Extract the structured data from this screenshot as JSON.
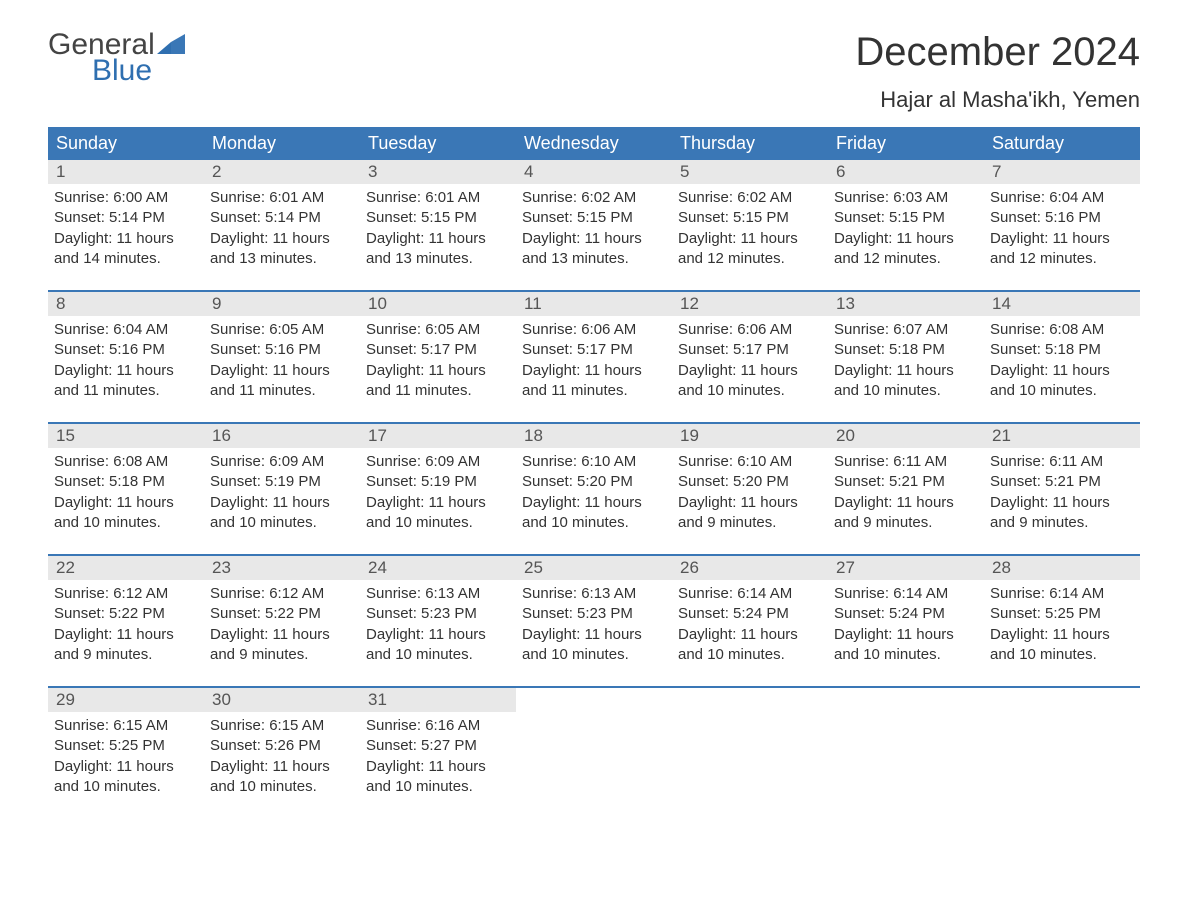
{
  "logo": {
    "word1": "General",
    "word2": "Blue"
  },
  "title": "December 2024",
  "location": "Hajar al Masha'ikh, Yemen",
  "colors": {
    "header_bg": "#3a77b6",
    "daynum_bg": "#e8e8e8",
    "week_divider": "#3a77b6",
    "logo_gray": "#444444",
    "logo_blue": "#2f6fb0",
    "text": "#333333",
    "background": "#ffffff"
  },
  "day_headers": [
    "Sunday",
    "Monday",
    "Tuesday",
    "Wednesday",
    "Thursday",
    "Friday",
    "Saturday"
  ],
  "weeks": [
    [
      {
        "n": "1",
        "sunrise": "Sunrise: 6:00 AM",
        "sunset": "Sunset: 5:14 PM",
        "d1": "Daylight: 11 hours",
        "d2": "and 14 minutes."
      },
      {
        "n": "2",
        "sunrise": "Sunrise: 6:01 AM",
        "sunset": "Sunset: 5:14 PM",
        "d1": "Daylight: 11 hours",
        "d2": "and 13 minutes."
      },
      {
        "n": "3",
        "sunrise": "Sunrise: 6:01 AM",
        "sunset": "Sunset: 5:15 PM",
        "d1": "Daylight: 11 hours",
        "d2": "and 13 minutes."
      },
      {
        "n": "4",
        "sunrise": "Sunrise: 6:02 AM",
        "sunset": "Sunset: 5:15 PM",
        "d1": "Daylight: 11 hours",
        "d2": "and 13 minutes."
      },
      {
        "n": "5",
        "sunrise": "Sunrise: 6:02 AM",
        "sunset": "Sunset: 5:15 PM",
        "d1": "Daylight: 11 hours",
        "d2": "and 12 minutes."
      },
      {
        "n": "6",
        "sunrise": "Sunrise: 6:03 AM",
        "sunset": "Sunset: 5:15 PM",
        "d1": "Daylight: 11 hours",
        "d2": "and 12 minutes."
      },
      {
        "n": "7",
        "sunrise": "Sunrise: 6:04 AM",
        "sunset": "Sunset: 5:16 PM",
        "d1": "Daylight: 11 hours",
        "d2": "and 12 minutes."
      }
    ],
    [
      {
        "n": "8",
        "sunrise": "Sunrise: 6:04 AM",
        "sunset": "Sunset: 5:16 PM",
        "d1": "Daylight: 11 hours",
        "d2": "and 11 minutes."
      },
      {
        "n": "9",
        "sunrise": "Sunrise: 6:05 AM",
        "sunset": "Sunset: 5:16 PM",
        "d1": "Daylight: 11 hours",
        "d2": "and 11 minutes."
      },
      {
        "n": "10",
        "sunrise": "Sunrise: 6:05 AM",
        "sunset": "Sunset: 5:17 PM",
        "d1": "Daylight: 11 hours",
        "d2": "and 11 minutes."
      },
      {
        "n": "11",
        "sunrise": "Sunrise: 6:06 AM",
        "sunset": "Sunset: 5:17 PM",
        "d1": "Daylight: 11 hours",
        "d2": "and 11 minutes."
      },
      {
        "n": "12",
        "sunrise": "Sunrise: 6:06 AM",
        "sunset": "Sunset: 5:17 PM",
        "d1": "Daylight: 11 hours",
        "d2": "and 10 minutes."
      },
      {
        "n": "13",
        "sunrise": "Sunrise: 6:07 AM",
        "sunset": "Sunset: 5:18 PM",
        "d1": "Daylight: 11 hours",
        "d2": "and 10 minutes."
      },
      {
        "n": "14",
        "sunrise": "Sunrise: 6:08 AM",
        "sunset": "Sunset: 5:18 PM",
        "d1": "Daylight: 11 hours",
        "d2": "and 10 minutes."
      }
    ],
    [
      {
        "n": "15",
        "sunrise": "Sunrise: 6:08 AM",
        "sunset": "Sunset: 5:18 PM",
        "d1": "Daylight: 11 hours",
        "d2": "and 10 minutes."
      },
      {
        "n": "16",
        "sunrise": "Sunrise: 6:09 AM",
        "sunset": "Sunset: 5:19 PM",
        "d1": "Daylight: 11 hours",
        "d2": "and 10 minutes."
      },
      {
        "n": "17",
        "sunrise": "Sunrise: 6:09 AM",
        "sunset": "Sunset: 5:19 PM",
        "d1": "Daylight: 11 hours",
        "d2": "and 10 minutes."
      },
      {
        "n": "18",
        "sunrise": "Sunrise: 6:10 AM",
        "sunset": "Sunset: 5:20 PM",
        "d1": "Daylight: 11 hours",
        "d2": "and 10 minutes."
      },
      {
        "n": "19",
        "sunrise": "Sunrise: 6:10 AM",
        "sunset": "Sunset: 5:20 PM",
        "d1": "Daylight: 11 hours",
        "d2": "and 9 minutes."
      },
      {
        "n": "20",
        "sunrise": "Sunrise: 6:11 AM",
        "sunset": "Sunset: 5:21 PM",
        "d1": "Daylight: 11 hours",
        "d2": "and 9 minutes."
      },
      {
        "n": "21",
        "sunrise": "Sunrise: 6:11 AM",
        "sunset": "Sunset: 5:21 PM",
        "d1": "Daylight: 11 hours",
        "d2": "and 9 minutes."
      }
    ],
    [
      {
        "n": "22",
        "sunrise": "Sunrise: 6:12 AM",
        "sunset": "Sunset: 5:22 PM",
        "d1": "Daylight: 11 hours",
        "d2": "and 9 minutes."
      },
      {
        "n": "23",
        "sunrise": "Sunrise: 6:12 AM",
        "sunset": "Sunset: 5:22 PM",
        "d1": "Daylight: 11 hours",
        "d2": "and 9 minutes."
      },
      {
        "n": "24",
        "sunrise": "Sunrise: 6:13 AM",
        "sunset": "Sunset: 5:23 PM",
        "d1": "Daylight: 11 hours",
        "d2": "and 10 minutes."
      },
      {
        "n": "25",
        "sunrise": "Sunrise: 6:13 AM",
        "sunset": "Sunset: 5:23 PM",
        "d1": "Daylight: 11 hours",
        "d2": "and 10 minutes."
      },
      {
        "n": "26",
        "sunrise": "Sunrise: 6:14 AM",
        "sunset": "Sunset: 5:24 PM",
        "d1": "Daylight: 11 hours",
        "d2": "and 10 minutes."
      },
      {
        "n": "27",
        "sunrise": "Sunrise: 6:14 AM",
        "sunset": "Sunset: 5:24 PM",
        "d1": "Daylight: 11 hours",
        "d2": "and 10 minutes."
      },
      {
        "n": "28",
        "sunrise": "Sunrise: 6:14 AM",
        "sunset": "Sunset: 5:25 PM",
        "d1": "Daylight: 11 hours",
        "d2": "and 10 minutes."
      }
    ],
    [
      {
        "n": "29",
        "sunrise": "Sunrise: 6:15 AM",
        "sunset": "Sunset: 5:25 PM",
        "d1": "Daylight: 11 hours",
        "d2": "and 10 minutes."
      },
      {
        "n": "30",
        "sunrise": "Sunrise: 6:15 AM",
        "sunset": "Sunset: 5:26 PM",
        "d1": "Daylight: 11 hours",
        "d2": "and 10 minutes."
      },
      {
        "n": "31",
        "sunrise": "Sunrise: 6:16 AM",
        "sunset": "Sunset: 5:27 PM",
        "d1": "Daylight: 11 hours",
        "d2": "and 10 minutes."
      },
      null,
      null,
      null,
      null
    ]
  ]
}
